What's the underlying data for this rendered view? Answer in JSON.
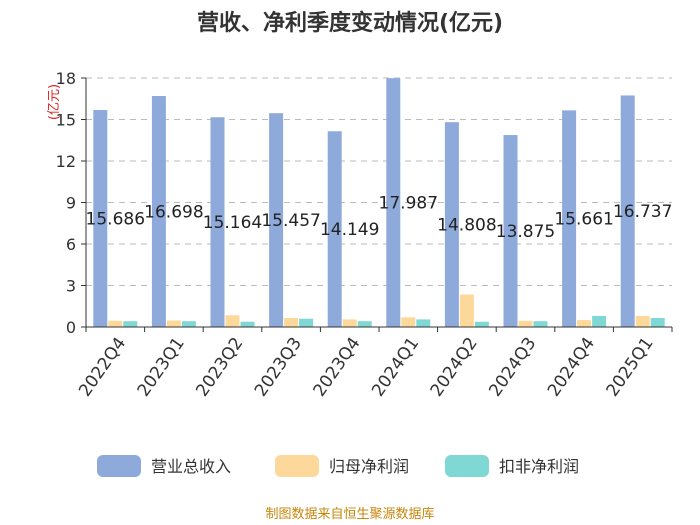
{
  "chart_data": {
    "type": "bar",
    "title": "营收、净利季度变动情况(亿元)",
    "unit_label": "(亿元)",
    "categories": [
      "2022Q4",
      "2023Q1",
      "2023Q2",
      "2023Q3",
      "2023Q4",
      "2024Q1",
      "2024Q2",
      "2024Q3",
      "2024Q4",
      "2025Q1"
    ],
    "ylim": [
      0,
      18
    ],
    "yticks": [
      "0",
      "3",
      "6",
      "9",
      "12",
      "15",
      "18"
    ],
    "grid": true,
    "legend_position": "bottom",
    "series": [
      {
        "name": "营业总收入",
        "color": "#8eaadb",
        "values": [
          15.686,
          16.698,
          15.164,
          15.457,
          14.149,
          17.987,
          14.808,
          13.875,
          15.661,
          16.737
        ],
        "labels": [
          "15.686",
          "16.698",
          "15.164",
          "15.457",
          "14.149",
          "17.987",
          "14.808",
          "13.875",
          "15.661",
          "16.737"
        ]
      },
      {
        "name": "归母净利润",
        "color": "#fdd89b",
        "values": [
          0.45,
          0.47,
          0.85,
          0.65,
          0.55,
          0.7,
          2.35,
          0.45,
          0.5,
          0.8
        ]
      },
      {
        "name": "扣非净利润",
        "color": "#7fd8d4",
        "values": [
          0.42,
          0.42,
          0.38,
          0.6,
          0.42,
          0.55,
          0.38,
          0.42,
          0.8,
          0.65
        ]
      }
    ]
  },
  "source": "制图数据来自恒生聚源数据库"
}
